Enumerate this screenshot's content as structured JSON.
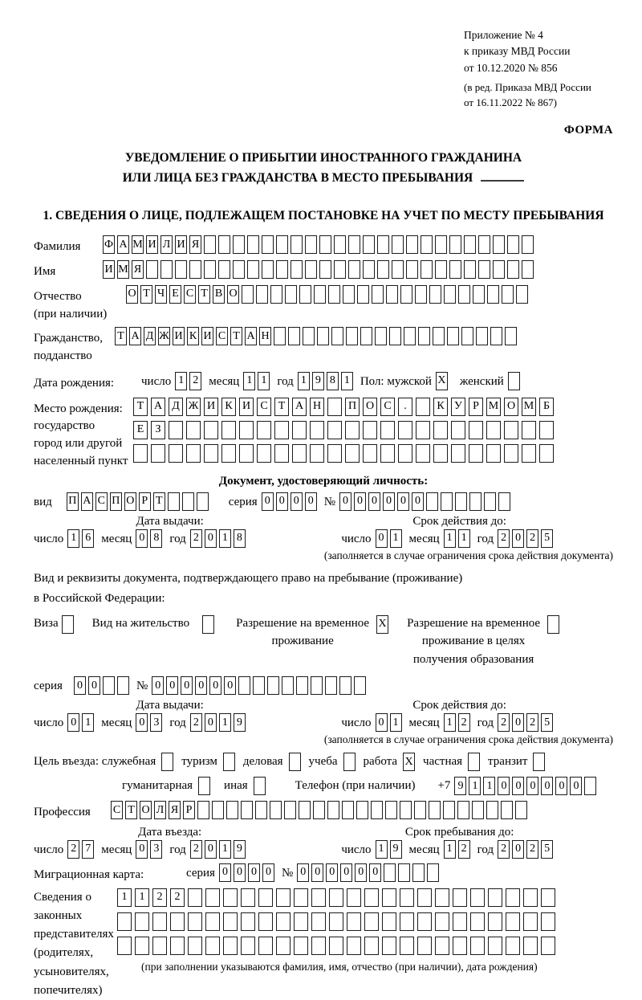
{
  "annex": {
    "line1": "Приложение № 4",
    "line2": "к приказу МВД России",
    "line3": "от 10.12.2020 № 856",
    "line4": "(в ред. Приказа МВД России",
    "line5": "от 16.11.2022 № 867)",
    "forma": "ФОРМА"
  },
  "title": {
    "line1": "УВЕДОМЛЕНИЕ О ПРИБЫТИИ ИНОСТРАННОГО ГРАЖДАНИНА",
    "line2": "ИЛИ ЛИЦА БЕЗ ГРАЖДАНСТВА В МЕСТО ПРЕБЫВАНИЯ"
  },
  "section1_heading": "1. СВЕДЕНИЯ О ЛИЦЕ, ПОДЛЕЖАЩЕМ ПОСТАНОВКЕ НА УЧЕТ ПО МЕСТУ ПРЕБЫВАНИЯ",
  "labels": {
    "surname": "Фамилия",
    "given_name": "Имя",
    "patronymic": "Отчество",
    "patronymic_note": "(при наличии)",
    "citizenship1": "Гражданство,",
    "citizenship2": "подданство",
    "birth_date": "Дата рождения:",
    "day": "число",
    "month": "месяц",
    "year": "год",
    "sex_male": "Пол: мужской",
    "sex_female": "женский",
    "birthplace": "Место рождения:",
    "birthplace_state": "государство",
    "birthplace_city1": "город или другой",
    "birthplace_city2": "населенный пункт",
    "id_doc_heading": "Документ, удостоверяющий личность:",
    "doc_type": "вид",
    "series": "серия",
    "number": "№",
    "issue_date": "Дата выдачи:",
    "valid_until": "Срок действия до:",
    "valid_note": "(заполняется в случае ограничения срока действия документа)",
    "right_doc_line1": "Вид и реквизиты документа, подтверждающего право на пребывание (проживание)",
    "right_doc_line2": "в Российской Федерации:",
    "visa": "Виза",
    "residence_permit": "Вид на жительство",
    "temp_res1": "Разрешение на временное",
    "temp_res2": "проживание",
    "temp_edu1": "Разрешение на временное",
    "temp_edu2": "проживание в целях",
    "temp_edu3": "получения образования",
    "purpose_lead": "Цель въезда: служебная",
    "tourism": "туризм",
    "business": "деловая",
    "study": "учеба",
    "work": "работа",
    "private": "частная",
    "transit": "транзит",
    "humanitarian": "гуманитарная",
    "other": "иная",
    "phone": "Телефон (при наличии)",
    "phone_prefix": "+7",
    "profession": "Профессия",
    "entry_date": "Дата въезда:",
    "stay_until": "Срок пребывания до:",
    "migration_card": "Миграционная карта:",
    "rep1": "Сведения о",
    "rep2": "законных",
    "rep3": "представителях",
    "rep4": "(родителях,",
    "rep5": "усыновителях,",
    "rep6": "попечителях)",
    "rep_note": "(при заполнении указываются фамилия, имя, отчество (при наличии), дата рождения)"
  },
  "fields": {
    "surname": {
      "text": "ФАМИЛИЯ",
      "len": 30
    },
    "given_name": {
      "text": "ИМЯ",
      "len": 30
    },
    "patronymic": {
      "text": "ОТЧЕСТВО",
      "len": 28
    },
    "citizenship": {
      "text": "ТАДЖИКИСТАН",
      "len": 28
    },
    "birth_day": {
      "text": "12",
      "len": 2
    },
    "birth_month": {
      "text": "11",
      "len": 2
    },
    "birth_year": {
      "text": "1981",
      "len": 4
    },
    "sex_male": {
      "text": "X",
      "len": 1
    },
    "sex_female": {
      "text": "",
      "len": 1
    },
    "birthplace_row1": {
      "text": "ТАДЖИКИСТАН ПОС. КУРМОМБ",
      "len": 24
    },
    "birthplace_row2": {
      "text": "ЕЗ",
      "len": 24
    },
    "birthplace_row3": {
      "text": "",
      "len": 24
    },
    "id_doc_type": {
      "text": "ПАСПОРТ",
      "len": 10
    },
    "id_doc_series": {
      "text": "0000",
      "len": 4
    },
    "id_doc_number": {
      "text": "000000",
      "len": 12
    },
    "id_issue_day": {
      "text": "16",
      "len": 2
    },
    "id_issue_month": {
      "text": "08",
      "len": 2
    },
    "id_issue_year": {
      "text": "2018",
      "len": 4
    },
    "id_expiry_day": {
      "text": "01",
      "len": 2
    },
    "id_expiry_month": {
      "text": "11",
      "len": 2
    },
    "id_expiry_year": {
      "text": "2025",
      "len": 4
    },
    "visa_cb": {
      "text": "",
      "len": 1
    },
    "residence_permit_cb": {
      "text": "",
      "len": 1
    },
    "temp_residence_cb": {
      "text": "X",
      "len": 1
    },
    "temp_residence_edu_cb": {
      "text": "",
      "len": 1
    },
    "permit_series": {
      "text": "00",
      "len": 4
    },
    "permit_number": {
      "text": "000000",
      "len": 15
    },
    "permit_issue_day": {
      "text": "01",
      "len": 2
    },
    "permit_issue_month": {
      "text": "03",
      "len": 2
    },
    "permit_issue_year": {
      "text": "2019",
      "len": 4
    },
    "permit_expiry_day": {
      "text": "01",
      "len": 2
    },
    "permit_expiry_month": {
      "text": "12",
      "len": 2
    },
    "permit_expiry_year": {
      "text": "2025",
      "len": 4
    },
    "purpose_official_cb": {
      "text": "",
      "len": 1
    },
    "purpose_tourism_cb": {
      "text": "",
      "len": 1
    },
    "purpose_business_cb": {
      "text": "",
      "len": 1
    },
    "purpose_study_cb": {
      "text": "",
      "len": 1
    },
    "purpose_work_cb": {
      "text": "X",
      "len": 1
    },
    "purpose_private_cb": {
      "text": "",
      "len": 1
    },
    "purpose_transit_cb": {
      "text": "",
      "len": 1
    },
    "purpose_humanitarian_cb": {
      "text": "",
      "len": 1
    },
    "purpose_other_cb": {
      "text": "",
      "len": 1
    },
    "phone": {
      "text": "911000000",
      "len": 10
    },
    "profession": {
      "text": "СТОЛЯР",
      "len": 29
    },
    "entry_day": {
      "text": "27",
      "len": 2
    },
    "entry_month": {
      "text": "03",
      "len": 2
    },
    "entry_year": {
      "text": "2019",
      "len": 4
    },
    "stay_day": {
      "text": "19",
      "len": 2
    },
    "stay_month": {
      "text": "12",
      "len": 2
    },
    "stay_year": {
      "text": "2025",
      "len": 4
    },
    "migration_card_series": {
      "text": "0000",
      "len": 4
    },
    "migration_card_number": {
      "text": "000000",
      "len": 10
    },
    "representatives_row1": {
      "text": "1122",
      "len": 25
    },
    "representatives_row2": {
      "text": "",
      "len": 25
    },
    "representatives_row3": {
      "text": "",
      "len": 25
    }
  }
}
